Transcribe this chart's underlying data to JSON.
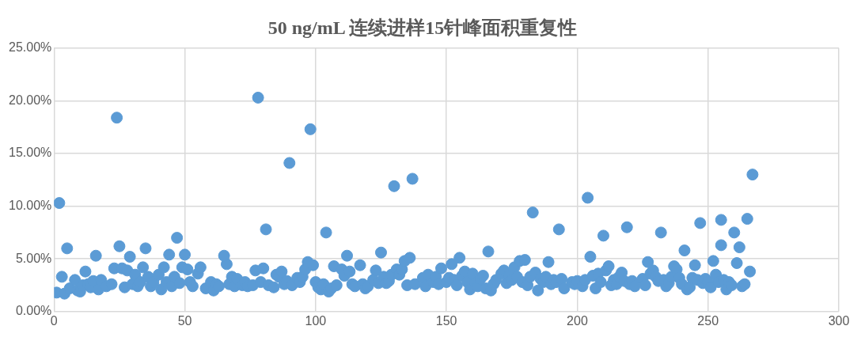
{
  "chart_data": {
    "type": "scatter",
    "title": "50 ng/mL 连续进样15针峰面积重复性",
    "x": [
      1,
      3,
      4,
      6,
      8,
      9,
      10,
      11,
      12,
      13,
      14,
      15,
      17,
      18,
      20,
      22,
      23,
      26,
      27,
      28,
      30,
      31,
      32,
      33,
      34,
      36,
      37,
      38,
      40,
      41,
      42,
      43,
      45,
      46,
      48,
      49,
      51,
      52,
      53,
      55,
      56,
      58,
      60,
      61,
      62,
      63,
      66,
      67,
      68,
      69,
      70,
      72,
      73,
      74,
      76,
      77,
      79,
      80,
      82,
      84,
      85,
      86,
      87,
      88,
      89,
      91,
      93,
      94,
      95,
      96,
      99,
      100,
      101,
      102,
      103,
      105,
      106,
      107,
      108,
      110,
      111,
      113,
      114,
      115,
      117,
      118,
      119,
      120,
      122,
      123,
      124,
      126,
      127,
      128,
      129,
      131,
      132,
      133,
      134,
      135,
      138,
      141,
      142,
      143,
      145,
      146,
      147,
      148,
      150,
      151,
      152,
      153,
      154,
      156,
      157,
      158,
      159,
      160,
      161,
      162,
      163,
      164,
      165,
      167,
      168,
      169,
      171,
      172,
      173,
      174,
      175,
      176,
      177,
      179,
      181,
      182,
      184,
      185,
      186,
      187,
      188,
      190,
      191,
      192,
      194,
      195,
      198,
      199,
      200,
      202,
      203,
      206,
      207,
      208,
      209,
      211,
      212,
      213,
      214,
      215,
      216,
      217,
      218,
      220,
      221,
      222,
      225,
      226,
      228,
      229,
      230,
      231,
      233,
      234,
      235,
      236,
      237,
      238,
      239,
      240,
      242,
      243,
      244,
      245,
      246,
      248,
      249,
      250,
      251,
      253,
      254,
      256,
      257,
      258,
      259,
      261,
      263,
      264,
      266,
      2,
      5,
      16,
      24,
      25,
      29,
      35,
      44,
      47,
      50,
      65,
      78,
      81,
      90,
      97,
      98,
      104,
      112,
      125,
      130,
      136,
      137,
      155,
      166,
      178,
      180,
      183,
      189,
      193,
      204,
      205,
      210,
      219,
      227,
      232,
      241,
      247,
      252,
      255,
      255,
      260,
      262,
      265,
      267
    ],
    "values": [
      1.8,
      3.3,
      1.7,
      2.2,
      3.0,
      2.0,
      1.9,
      2.5,
      3.8,
      2.6,
      2.3,
      2.9,
      2.1,
      3.0,
      2.4,
      2.6,
      4.1,
      4.1,
      2.3,
      3.9,
      2.6,
      3.5,
      2.4,
      2.8,
      4.2,
      3.3,
      2.4,
      2.8,
      3.5,
      2.1,
      4.2,
      2.8,
      2.4,
      3.3,
      2.7,
      4.2,
      4.0,
      2.8,
      2.4,
      3.6,
      4.2,
      2.2,
      2.8,
      2.0,
      2.6,
      2.4,
      4.5,
      2.6,
      3.3,
      2.4,
      3.1,
      2.5,
      2.8,
      2.4,
      2.5,
      3.9,
      2.8,
      4.1,
      2.5,
      2.3,
      3.5,
      3.3,
      3.8,
      2.6,
      2.9,
      2.5,
      3.2,
      2.8,
      3.3,
      4.0,
      4.4,
      2.8,
      2.3,
      2.1,
      2.6,
      1.9,
      2.2,
      4.3,
      2.5,
      4.0,
      3.4,
      3.8,
      2.6,
      2.4,
      4.4,
      2.6,
      2.2,
      2.4,
      3.0,
      3.9,
      2.7,
      3.3,
      2.7,
      2.9,
      3.5,
      4.0,
      3.5,
      4.0,
      4.8,
      2.5,
      2.6,
      3.2,
      2.4,
      3.5,
      2.8,
      3.3,
      2.6,
      4.1,
      2.8,
      3.2,
      4.5,
      3.0,
      2.5,
      3.4,
      3.8,
      2.8,
      2.1,
      3.6,
      2.7,
      2.4,
      3.1,
      3.4,
      2.2,
      2.0,
      2.6,
      3.0,
      3.6,
      3.9,
      2.7,
      3.4,
      3.0,
      4.2,
      3.3,
      2.8,
      2.5,
      3.3,
      3.7,
      2.0,
      3.1,
      2.8,
      3.3,
      2.6,
      3.0,
      2.8,
      3.1,
      2.2,
      2.8,
      2.6,
      2.9,
      2.4,
      3.0,
      3.4,
      2.2,
      3.6,
      2.8,
      3.9,
      4.3,
      2.5,
      3.0,
      2.6,
      3.3,
      3.7,
      2.9,
      2.6,
      2.9,
      2.4,
      3.1,
      2.5,
      3.6,
      3.9,
      3.3,
      2.9,
      3.0,
      2.4,
      2.7,
      3.3,
      4.3,
      4.0,
      3.2,
      2.6,
      2.1,
      2.3,
      3.2,
      4.4,
      3.0,
      2.7,
      3.1,
      2.8,
      2.3,
      3.5,
      2.8,
      3.0,
      2.1,
      2.8,
      2.5,
      4.6,
      2.4,
      2.6,
      3.8,
      10.3,
      6.0,
      5.3,
      18.4,
      6.2,
      5.2,
      6.0,
      5.4,
      7.0,
      5.4,
      5.3,
      20.3,
      7.8,
      14.1,
      4.7,
      17.3,
      7.5,
      5.3,
      5.6,
      11.9,
      5.1,
      12.6,
      5.1,
      5.7,
      4.8,
      4.9,
      9.4,
      4.7,
      7.8,
      10.8,
      5.2,
      7.2,
      8.0,
      4.7,
      7.5,
      5.8,
      8.4,
      4.8,
      8.7,
      6.3,
      7.5,
      6.1,
      8.8,
      13.0
    ],
    "color": "#5b9bd5",
    "marker": "circle",
    "grid": true,
    "legend": false,
    "xlim": [
      0,
      300
    ],
    "xticks": [
      0,
      50,
      100,
      150,
      200,
      250,
      300
    ],
    "ylim": [
      0,
      25
    ],
    "yticks": [
      {
        "value": 0,
        "label": "0.00%"
      },
      {
        "value": 5,
        "label": "5.00%"
      },
      {
        "value": 10,
        "label": "10.00%"
      },
      {
        "value": 15,
        "label": "15.00%"
      },
      {
        "value": 20,
        "label": "20.00%"
      },
      {
        "value": 25,
        "label": "25.00%"
      }
    ]
  }
}
